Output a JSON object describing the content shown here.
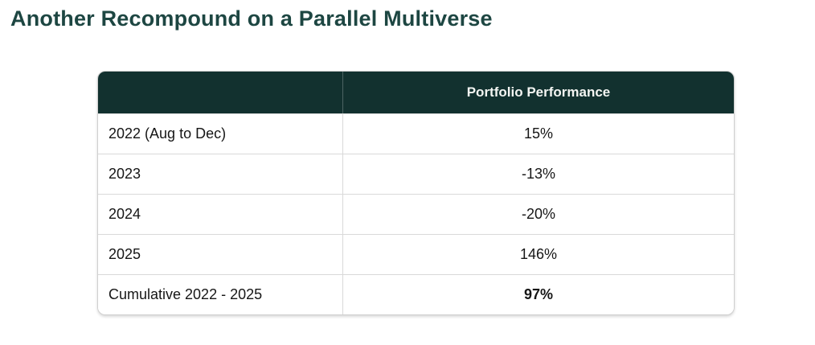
{
  "page": {
    "title": "Another Recompound on a Parallel Multiverse"
  },
  "colors": {
    "title_text": "#1d4642",
    "header_background": "#12312f",
    "header_text": "#f3f5f2",
    "body_text": "#161616",
    "row_border": "#d9d9d9"
  },
  "table": {
    "columns": [
      "",
      "Portfolio Performance"
    ],
    "rows": [
      {
        "label": "2022 (Aug to Dec)",
        "value": "15%"
      },
      {
        "label": "2023",
        "value": "-13%"
      },
      {
        "label": "2024",
        "value": "-20%"
      },
      {
        "label": "2025",
        "value": "146%"
      },
      {
        "label": "Cumulative 2022 - 2025",
        "value": "97%"
      }
    ]
  }
}
